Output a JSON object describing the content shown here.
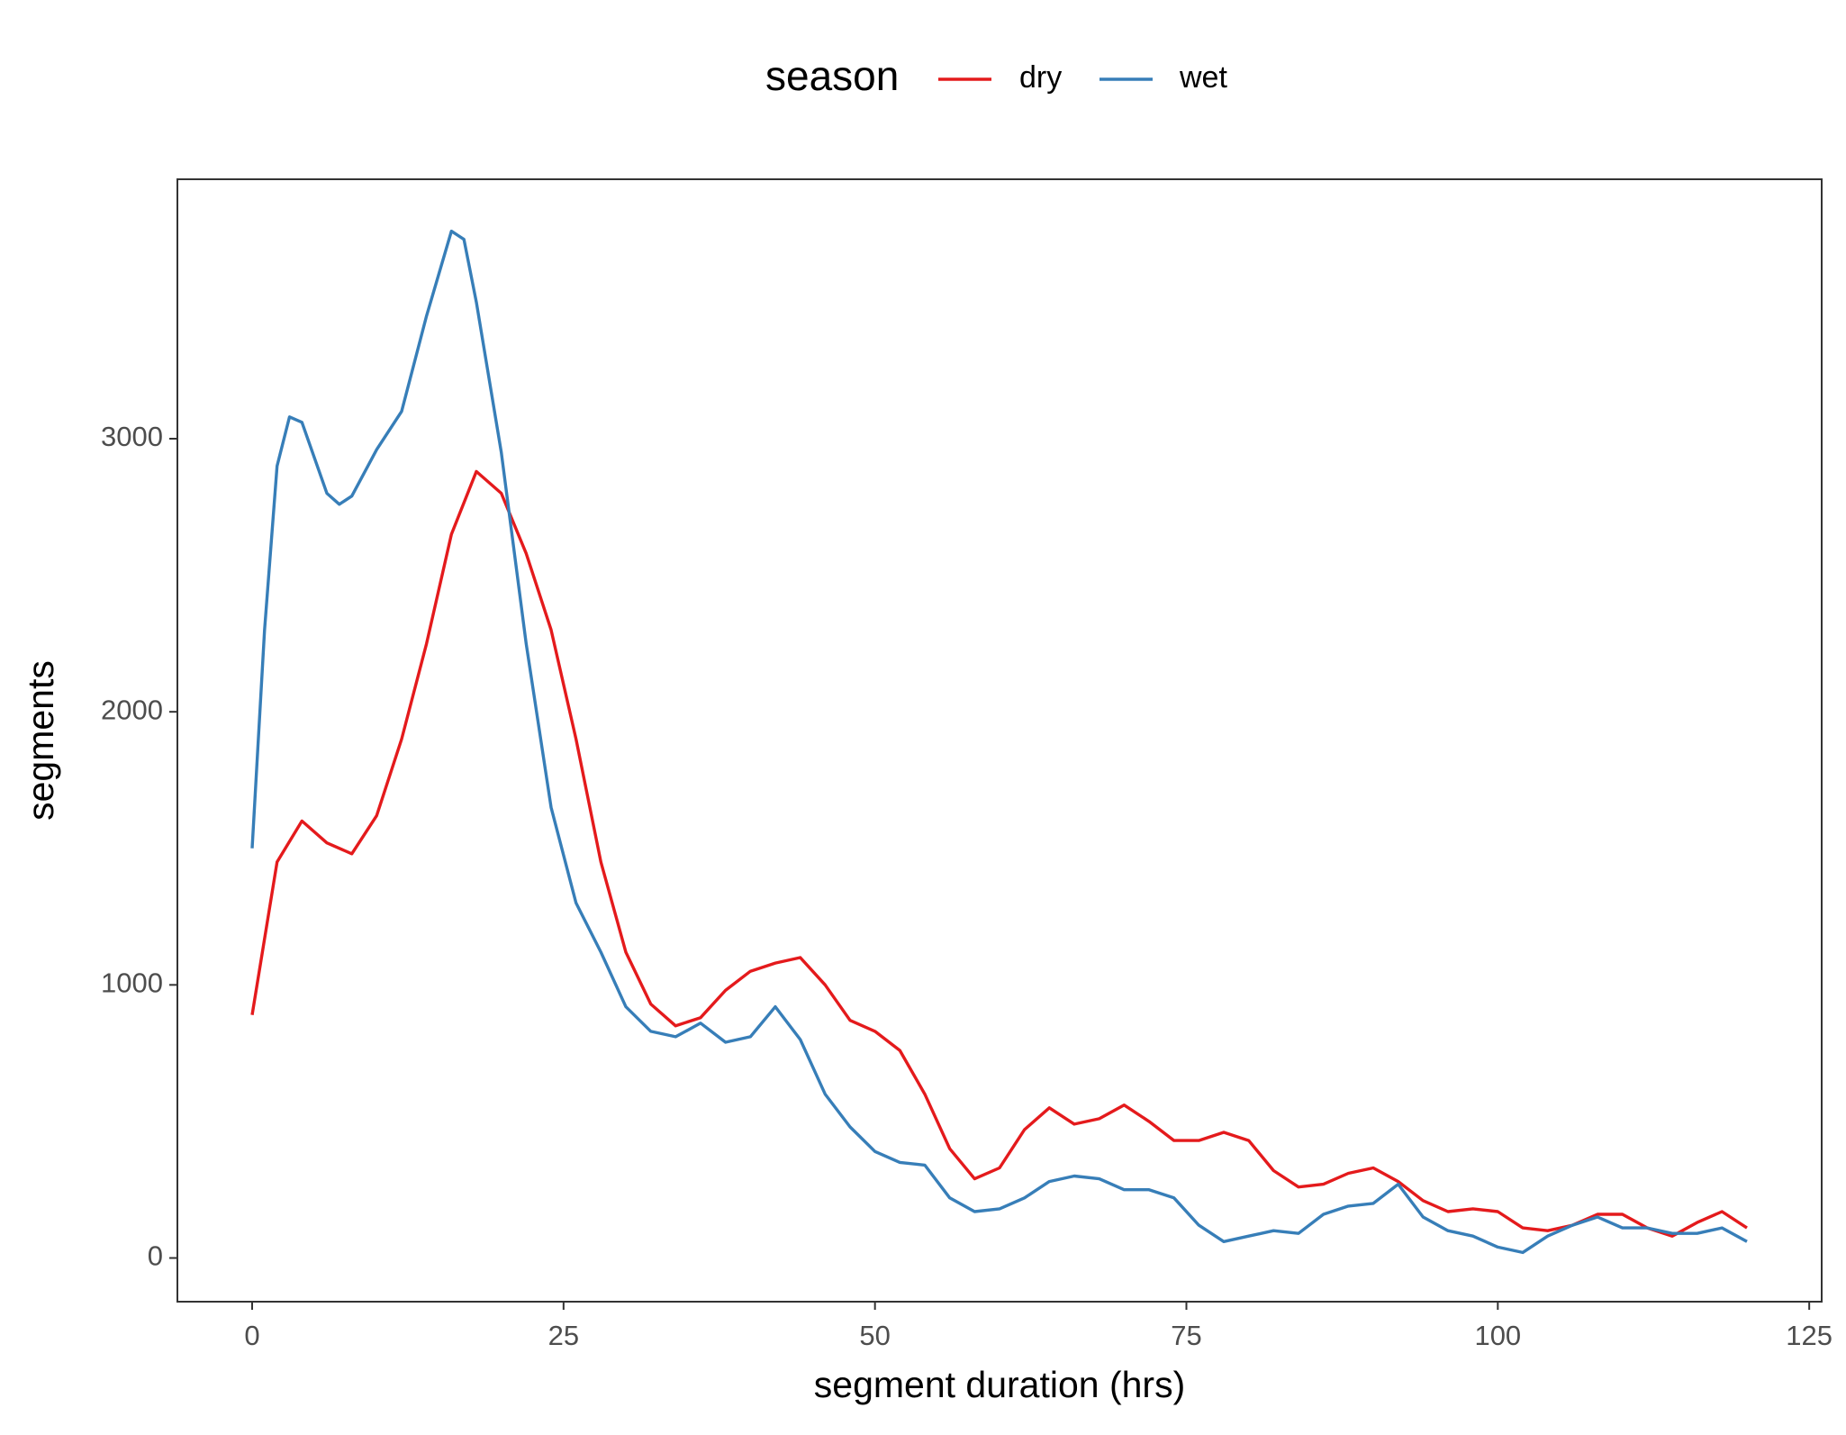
{
  "chart_data": {
    "type": "line",
    "x_label": "segment duration (hrs)",
    "y_label": "segments",
    "legend_title": "season",
    "legend_position": "top",
    "xlim": [
      -6,
      126
    ],
    "ylim": [
      -160,
      3950
    ],
    "xticks": [
      0,
      25,
      50,
      75,
      100,
      125
    ],
    "yticks": [
      0,
      1000,
      2000,
      3000
    ],
    "grid": false,
    "series": [
      {
        "name": "dry",
        "color": "#e41a1c",
        "x": [
          0,
          2,
          4,
          6,
          8,
          10,
          12,
          14,
          16,
          18,
          20,
          22,
          24,
          26,
          28,
          30,
          32,
          34,
          36,
          38,
          40,
          42,
          44,
          46,
          48,
          50,
          52,
          54,
          56,
          58,
          60,
          62,
          64,
          66,
          68,
          70,
          72,
          74,
          76,
          78,
          80,
          82,
          84,
          86,
          88,
          90,
          92,
          94,
          96,
          98,
          100,
          102,
          104,
          106,
          108,
          110,
          112,
          114,
          116,
          118,
          120
        ],
        "values": [
          890,
          1450,
          1600,
          1520,
          1480,
          1620,
          1900,
          2250,
          2650,
          2880,
          2800,
          2580,
          2300,
          1900,
          1450,
          1120,
          930,
          850,
          880,
          980,
          1050,
          1080,
          1100,
          1000,
          870,
          830,
          760,
          600,
          400,
          290,
          330,
          470,
          550,
          490,
          510,
          560,
          500,
          430,
          430,
          460,
          430,
          320,
          260,
          270,
          310,
          330,
          280,
          210,
          170,
          180,
          170,
          110,
          100,
          120,
          160,
          160,
          110,
          80,
          130,
          170,
          110
        ]
      },
      {
        "name": "wet",
        "color": "#377eb8",
        "x": [
          0,
          1,
          2,
          3,
          4,
          6,
          7,
          8,
          10,
          12,
          14,
          16,
          17,
          18,
          20,
          22,
          24,
          26,
          28,
          30,
          32,
          34,
          36,
          38,
          40,
          42,
          44,
          46,
          48,
          50,
          52,
          54,
          56,
          58,
          60,
          62,
          64,
          66,
          68,
          70,
          72,
          74,
          76,
          78,
          80,
          82,
          84,
          86,
          88,
          90,
          92,
          94,
          96,
          98,
          100,
          102,
          104,
          106,
          108,
          110,
          112,
          114,
          116,
          118,
          120
        ],
        "values": [
          1500,
          2300,
          2900,
          3080,
          3060,
          2800,
          2760,
          2790,
          2960,
          3100,
          3450,
          3760,
          3730,
          3500,
          2950,
          2250,
          1650,
          1300,
          1120,
          920,
          830,
          810,
          860,
          790,
          810,
          920,
          800,
          600,
          480,
          390,
          350,
          340,
          220,
          170,
          180,
          220,
          280,
          300,
          290,
          250,
          250,
          220,
          120,
          60,
          80,
          100,
          90,
          160,
          190,
          200,
          270,
          150,
          100,
          80,
          40,
          20,
          80,
          120,
          150,
          110,
          110,
          90,
          90,
          110,
          60
        ]
      }
    ]
  }
}
